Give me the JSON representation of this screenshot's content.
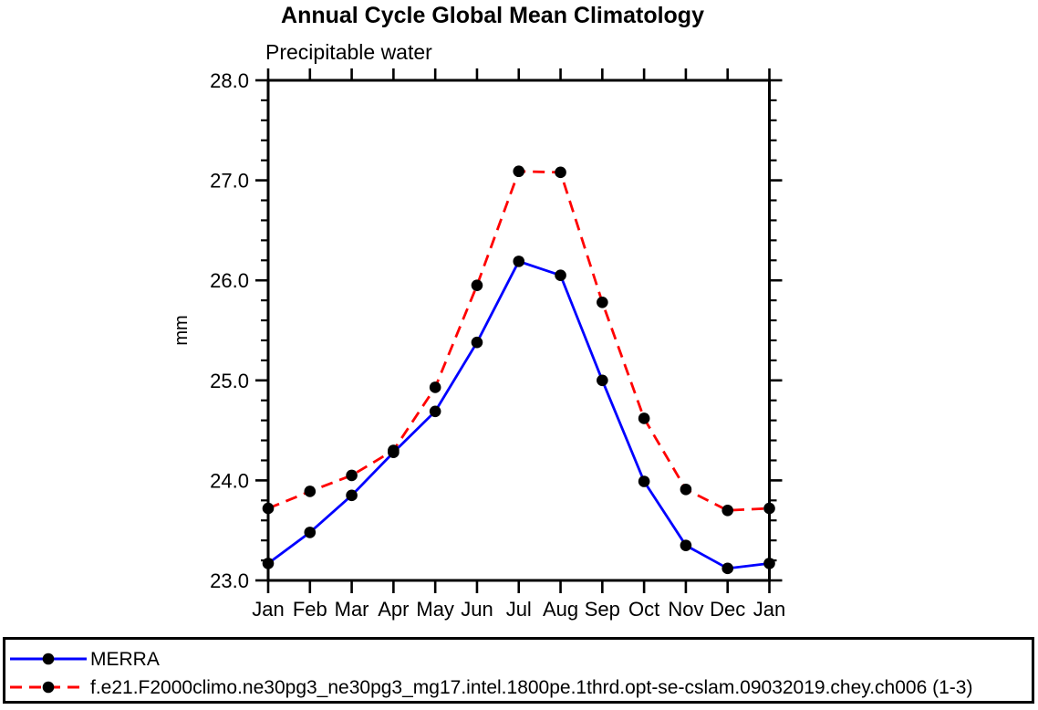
{
  "chart_data": {
    "type": "line",
    "title": "Annual Cycle Global Mean Climatology",
    "subtitle": "Precipitable water",
    "xlabel": "",
    "ylabel": "mm",
    "categories": [
      "Jan",
      "Feb",
      "Mar",
      "Apr",
      "May",
      "Jun",
      "Jul",
      "Aug",
      "Sep",
      "Oct",
      "Nov",
      "Dec",
      "Jan"
    ],
    "ylim": [
      23.0,
      28.0
    ],
    "ytick_labels": [
      "23.0",
      "24.0",
      "25.0",
      "26.0",
      "27.0",
      "28.0"
    ],
    "minor_ticks_per_major": 4,
    "grid": false,
    "legend_position": "bottom-outside",
    "axis_color": "#000000",
    "background_color": "#ffffff",
    "series": [
      {
        "name": "MERRA",
        "color": "#0000ff",
        "line_style": "solid",
        "marker": "filled-circle",
        "marker_color": "#000000",
        "values": [
          23.17,
          23.48,
          23.85,
          24.28,
          24.69,
          25.38,
          26.19,
          26.05,
          25.0,
          23.99,
          23.35,
          23.12,
          23.17
        ]
      },
      {
        "name": "f.e21.F2000climo.ne30pg3_ne30pg3_mg17.intel.1800pe.1thrd.opt-se-cslam.09032019.chey.ch006 (1-3)",
        "color": "#ff0000",
        "line_style": "dashed",
        "marker": "filled-circle",
        "marker_color": "#000000",
        "values": [
          23.72,
          23.89,
          24.05,
          24.3,
          24.93,
          25.95,
          27.09,
          27.08,
          25.78,
          24.62,
          23.91,
          23.7,
          23.72
        ]
      }
    ]
  }
}
